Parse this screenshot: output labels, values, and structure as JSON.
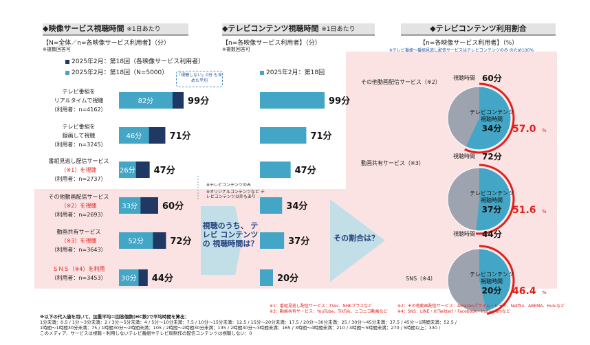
{
  "panels": {
    "left": {
      "title": "◆映像サービス視聴時間",
      "title_note": "※1日あたり",
      "basis": "【N=全体／n=各映像サービス利用者】（分）",
      "multi": "※複数回答可",
      "legend_a": "2025年2月：第18回（各映像サービス利用者）",
      "legend_b": "2025年2月：第18回（N=5000）",
      "callout": "「視聴しない」0分 も含めた平均"
    },
    "middle": {
      "title": "◆テレビコンテンツ視聴時間",
      "title_note": "※1日あたり",
      "basis": "【n=各映像サービス利用者】（分）",
      "multi": "※複数回答可",
      "legend": "2025年2月：第18回",
      "note_tv": "※テレビコンテンツのみ",
      "note_orig": "※オリジナルコンテンツなど テレビコンテンツ以外もあり",
      "question": "視聴のうち、 テレビ コンテンツの 視聴時間は？"
    },
    "right": {
      "title": "◆テレビコンテンツ利用割合",
      "basis": "【n=各映像サービス利用者】（%）",
      "note": "※テレビ番組～番組見逃し配信サービスはテレビコンテンツのみ のため100%",
      "question": "その割合は？",
      "view_time_label": "視聴時間",
      "inner_label": "テレビコンテンツ 視聴時間"
    }
  },
  "footnotes": {
    "n1": "※1：番組見逃し配信サービス：TVer、NHKプラスなど",
    "n3": "※3：動画共有サービス：YouTube、TikTok、ニコニコ動画など",
    "n2": "※2：その他動画配信サービス：Amazonプライム・ビデオ、Netflix、ABEMA、Huluなど",
    "n4": "※4：SNS：LINE・X(Twitter)・Facebook・Instagramなど",
    "method_title": "※以下の代入値を用いて、加重平均＝回答個数(HC数)で平均時間を算出：",
    "method_1": "1分未満：0.5 / 1分～3分未満：2 / 3分～5分未満：4 / 5分～10分未満：7.5 / 10分～15分未満：12.5 / 15分～20分未満：17.5 / 20分～30分未満：25 / 30分～45分未満：37.5 / 45分～1時間未満：52.5 /",
    "method_2": "1時間～1時間30分未満：75 / 1時間30分～2時間未満：105 / 2時間～2時間30分未満：135 / 2時間30分～3時間未満：165 / 3時間～4時間未満：210 / 4時間～5時間未満：270 / 5時間以上：330 /",
    "method_3": "このメディア、サービスは視聴・利用しないテレビ番組やテレビ局制作の配信コンテンツは視聴しない：0"
  },
  "colors": {
    "dark": "#1f3864",
    "light": "#44a6c6",
    "pie_grey": "#9ea3b0",
    "ring": "#e0201b",
    "pink": "#fbe3e3"
  },
  "chart_data": [
    {
      "type": "bar",
      "title": "◆映像サービス視聴時間",
      "categories": [
        "テレビ番組を リアルタイムで視聴 （利用者：n=4162）",
        "テレビ番組を 録画して視聴 （利用者：n=3245）",
        "番組見逃し配信サービス （※1）を視聴 （利用者：n=2737）",
        "その他動画配信サービス （※2）を視聴 （利用者：n=2693）",
        "動画共有サービス （※3）を視聴 （利用者：n=3643）",
        "ＳＮＳ（※4）を利用 （利用者：n=3453）"
      ],
      "series": [
        {
          "name": "2025年2月：第18回（各映像サービス利用者）",
          "values": [
            99,
            71,
            47,
            60,
            72,
            44
          ]
        },
        {
          "name": "2025年2月：第18回（N=5000）",
          "values": [
            82,
            46,
            26,
            33,
            52,
            30
          ]
        }
      ],
      "value_labels": [
        "99分",
        "71分",
        "47分",
        "60分",
        "72分",
        "44分"
      ],
      "inner_labels": [
        "82分",
        "46分",
        "26分",
        "33分",
        "52分",
        "30分"
      ],
      "unit": "分"
    },
    {
      "type": "bar",
      "title": "◆テレビコンテンツ視聴時間",
      "series": [
        {
          "name": "2025年2月：第18回",
          "values": [
            99,
            71,
            47,
            34,
            37,
            20
          ]
        }
      ],
      "value_labels": [
        "99分",
        "71分",
        "47分",
        "34分",
        "37分",
        "20分"
      ],
      "unit": "分"
    },
    {
      "type": "pie",
      "title": "◆テレビコンテンツ利用割合",
      "categories": [
        "その他動画配信サービス（※2）",
        "動画共有サービス（※3）",
        "SNS（※4）"
      ],
      "view_time": [
        "60分",
        "72分",
        "44分"
      ],
      "tv_time": [
        "34分",
        "37分",
        "20分"
      ],
      "percent_values": [
        57.0,
        51.6,
        46.4
      ],
      "percent_labels": [
        "57.0",
        "51.6",
        "46.4"
      ],
      "percent_unit": "%"
    }
  ]
}
